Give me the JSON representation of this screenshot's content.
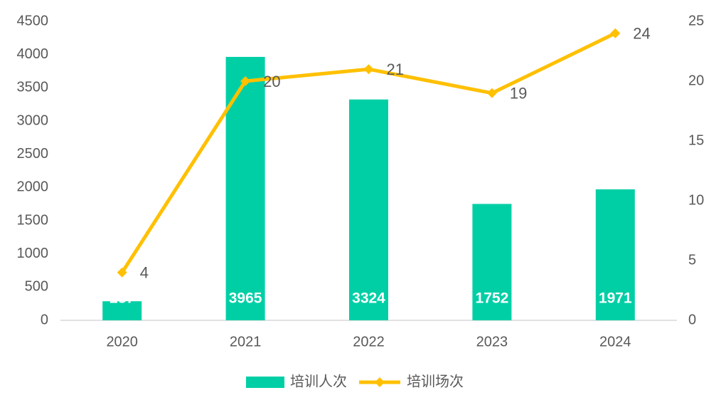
{
  "chart_data": {
    "type": "bar",
    "categories": [
      "2020",
      "2021",
      "2022",
      "2023",
      "2024"
    ],
    "series": [
      {
        "name": "培训人次",
        "type": "bar",
        "color": "#00cfa6",
        "values": [
          287,
          3965,
          3324,
          1752,
          1971
        ]
      },
      {
        "name": "培训场次",
        "type": "line",
        "axis": "y2",
        "color": "#ffc000",
        "values": [
          4,
          20,
          21,
          19,
          24
        ]
      }
    ],
    "ylim": [
      0,
      4500
    ],
    "yticks": [
      0,
      500,
      1000,
      1500,
      2000,
      2500,
      3000,
      3500,
      4000,
      4500
    ],
    "y2lim": [
      0,
      25
    ],
    "y2ticks": [
      0,
      5,
      10,
      15,
      20,
      25
    ],
    "legend": "bottom"
  }
}
